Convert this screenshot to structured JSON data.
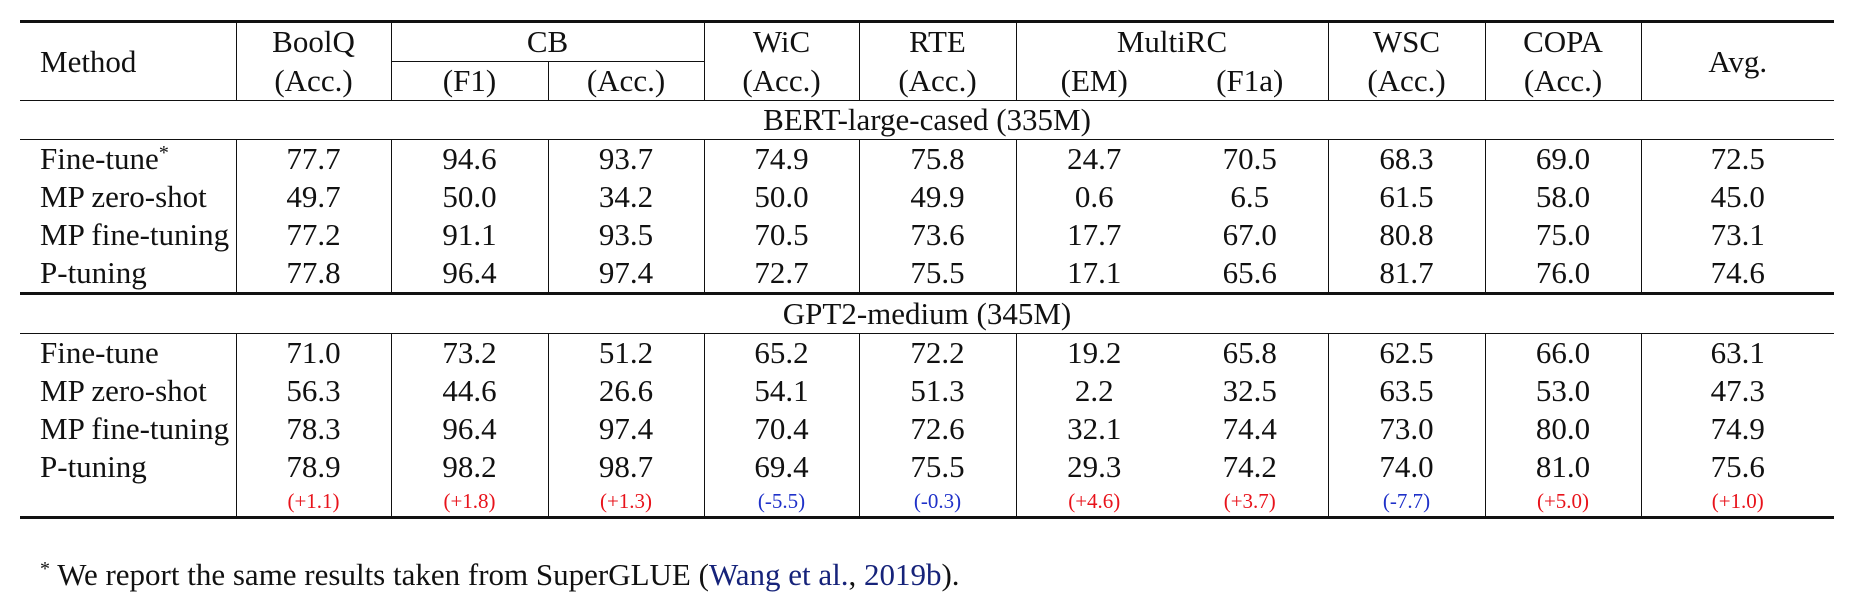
{
  "header": {
    "method": "Method",
    "boolq": "BoolQ",
    "boolq_metric": "(Acc.)",
    "cb": "CB",
    "cb_f1": "(F1)",
    "cb_acc": "(Acc.)",
    "wic": "WiC",
    "wic_metric": "(Acc.)",
    "rte": "RTE",
    "rte_metric": "(Acc.)",
    "multirc": "MultiRC",
    "multirc_em": "(EM)",
    "multirc_f1a": "(F1a)",
    "wsc": "WSC",
    "wsc_metric": "(Acc.)",
    "copa": "COPA",
    "copa_metric": "(Acc.)",
    "avg": "Avg."
  },
  "sections": [
    {
      "title": "BERT-large-cased (335M)",
      "rows": [
        {
          "method": "Fine-tune",
          "mark": "*",
          "values": [
            "77.7",
            "94.6",
            "93.7",
            "74.9",
            "75.8",
            "24.7",
            "70.5",
            "68.3",
            "69.0",
            "72.5"
          ]
        },
        {
          "method": "MP zero-shot",
          "mark": "",
          "values": [
            "49.7",
            "50.0",
            "34.2",
            "50.0",
            "49.9",
            "0.6",
            "6.5",
            "61.5",
            "58.0",
            "45.0"
          ]
        },
        {
          "method": "MP fine-tuning",
          "mark": "",
          "values": [
            "77.2",
            "91.1",
            "93.5",
            "70.5",
            "73.6",
            "17.7",
            "67.0",
            "80.8",
            "75.0",
            "73.1"
          ]
        },
        {
          "method": "P-tuning",
          "mark": "",
          "values": [
            "77.8",
            "96.4",
            "97.4",
            "72.7",
            "75.5",
            "17.1",
            "65.6",
            "81.7",
            "76.0",
            "74.6"
          ]
        }
      ]
    },
    {
      "title": "GPT2-medium (345M)",
      "rows": [
        {
          "method": "Fine-tune",
          "mark": "",
          "values": [
            "71.0",
            "73.2",
            "51.2",
            "65.2",
            "72.2",
            "19.2",
            "65.8",
            "62.5",
            "66.0",
            "63.1"
          ]
        },
        {
          "method": "MP zero-shot",
          "mark": "",
          "values": [
            "56.3",
            "44.6",
            "26.6",
            "54.1",
            "51.3",
            "2.2",
            "32.5",
            "63.5",
            "53.0",
            "47.3"
          ]
        },
        {
          "method": "MP fine-tuning",
          "mark": "",
          "values": [
            "78.3",
            "96.4",
            "97.4",
            "70.4",
            "72.6",
            "32.1",
            "74.4",
            "73.0",
            "80.0",
            "74.9"
          ]
        },
        {
          "method": "P-tuning",
          "mark": "",
          "values": [
            "78.9",
            "98.2",
            "98.7",
            "69.4",
            "75.5",
            "29.3",
            "74.2",
            "74.0",
            "81.0",
            "75.6"
          ]
        }
      ],
      "deltas": [
        "(+1.1)",
        "(+1.8)",
        "(+1.3)",
        "(-5.5)",
        "(-0.3)",
        "(+4.6)",
        "(+3.7)",
        "(-7.7)",
        "(+5.0)",
        "(+1.0)"
      ]
    }
  ],
  "colors": {
    "positive_delta": "#e8131b",
    "negative_delta": "#1f31c9",
    "citation_link": "#16237a"
  },
  "footnote": {
    "mark": "*",
    "text_before": " We report the same results taken from SuperGLUE (",
    "citation_authors": "Wang et al.",
    "separator": ", ",
    "citation_year": "2019b",
    "text_after": ")."
  }
}
